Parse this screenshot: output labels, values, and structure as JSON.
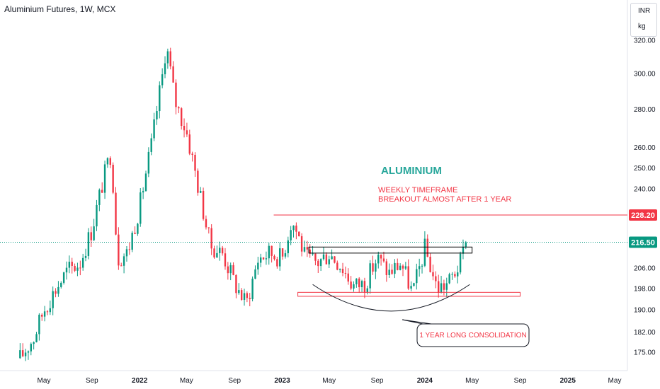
{
  "chart_data": {
    "type": "candlestick",
    "title": "Aluminium Futures, 1W, MCX",
    "currency": "INR",
    "unit": "kg",
    "y_scale": "log",
    "ylim": [
      170,
      322
    ],
    "y_ticks": [
      "175.00",
      "182.00",
      "190.00",
      "198.00",
      "206.00",
      "216.50",
      "228.20",
      "240.00",
      "250.00",
      "260.00",
      "280.00",
      "300.00",
      "320.00"
    ],
    "x_labels": [
      {
        "label": "May",
        "date": "2021-05-01",
        "year": false
      },
      {
        "label": "Sep",
        "date": "2021-09-01",
        "year": false
      },
      {
        "label": "2022",
        "date": "2022-01-01",
        "year": true
      },
      {
        "label": "May",
        "date": "2022-05-01",
        "year": false
      },
      {
        "label": "Sep",
        "date": "2022-09-01",
        "year": false
      },
      {
        "label": "2023",
        "date": "2023-01-01",
        "year": true
      },
      {
        "label": "May",
        "date": "2023-05-01",
        "year": false
      },
      {
        "label": "Sep",
        "date": "2023-09-01",
        "year": false
      },
      {
        "label": "2024",
        "date": "2024-01-01",
        "year": true
      },
      {
        "label": "May",
        "date": "2024-05-01",
        "year": false
      },
      {
        "label": "Sep",
        "date": "2024-09-01",
        "year": false
      },
      {
        "label": "2025",
        "date": "2025-01-01",
        "year": true
      },
      {
        "label": "May",
        "date": "2025-05-01",
        "year": false
      }
    ],
    "price_waypoints": [
      [
        "2021-03-01",
        173
      ],
      [
        "2021-04-05",
        180
      ],
      [
        "2021-05-01",
        190
      ],
      [
        "2021-06-01",
        198
      ],
      [
        "2021-07-01",
        205
      ],
      [
        "2021-08-01",
        208
      ],
      [
        "2021-09-01",
        222
      ],
      [
        "2021-10-01",
        245
      ],
      [
        "2021-10-20",
        258
      ],
      [
        "2021-11-05",
        210
      ],
      [
        "2021-12-01",
        212
      ],
      [
        "2022-01-01",
        232
      ],
      [
        "2022-02-01",
        262
      ],
      [
        "2022-03-01",
        300
      ],
      [
        "2022-03-10",
        318
      ],
      [
        "2022-04-01",
        285
      ],
      [
        "2022-05-01",
        268
      ],
      [
        "2022-06-01",
        240
      ],
      [
        "2022-07-01",
        215
      ],
      [
        "2022-08-01",
        212
      ],
      [
        "2022-09-01",
        200
      ],
      [
        "2022-10-01",
        192
      ],
      [
        "2022-11-01",
        210
      ],
      [
        "2022-12-01",
        212
      ],
      [
        "2023-01-01",
        210
      ],
      [
        "2023-01-25",
        226
      ],
      [
        "2023-02-10",
        220
      ],
      [
        "2023-03-01",
        210
      ],
      [
        "2023-04-01",
        208
      ],
      [
        "2023-05-01",
        212
      ],
      [
        "2023-06-01",
        207
      ],
      [
        "2023-07-01",
        199
      ],
      [
        "2023-08-01",
        200
      ],
      [
        "2023-09-01",
        210
      ],
      [
        "2023-10-01",
        204
      ],
      [
        "2023-11-01",
        208
      ],
      [
        "2023-12-01",
        196
      ],
      [
        "2024-01-01",
        214
      ],
      [
        "2024-02-01",
        198
      ],
      [
        "2024-03-01",
        200
      ],
      [
        "2024-04-01",
        208
      ],
      [
        "2024-04-15",
        216.5
      ]
    ],
    "last_price": 216.5,
    "last_price_label": "216.50",
    "resistance": {
      "price": 228.2,
      "label": "228.20",
      "from": "2023-01-01",
      "to": "2024-12-01"
    },
    "zones": [
      {
        "top": 214.5,
        "bottom": 212.0,
        "from": "2023-03-10",
        "to": "2024-05-01",
        "color": "#000000"
      },
      {
        "top": 196.5,
        "bottom": 195.0,
        "from": "2023-02-10",
        "to": "2024-09-01",
        "color": "#f23645"
      }
    ],
    "arc": {
      "from": "2023-03-20",
      "to": "2024-04-25",
      "bottom": 189.5,
      "top": 199.5
    },
    "colors": {
      "up": "#089981",
      "down": "#f23645",
      "accent": "#26a69a",
      "line": "#f23645"
    }
  },
  "annotations": {
    "heading": "ALUMINIUM",
    "line1": "WEEKLY TIMEFRAME",
    "line2": "BREAKOUT ALMOST AFTER 1 YEAR",
    "callout": "1 YEAR LONG CONSOLIDATION"
  },
  "header": {
    "title": "Aluminium Futures, 1W, MCX",
    "currency": "INR",
    "unit": "kg"
  }
}
